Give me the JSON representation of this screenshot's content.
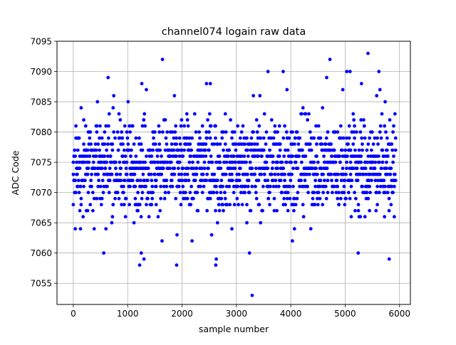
{
  "chart_data": {
    "type": "scatter",
    "title": "channel074 logain raw data",
    "xlabel": "sample number",
    "ylabel": "ADC Code",
    "xlim": [
      -300,
      6200
    ],
    "ylim": [
      7051.5,
      7095
    ],
    "xticks": [
      0,
      1000,
      2000,
      3000,
      4000,
      5000,
      6000
    ],
    "yticks": [
      7055,
      7060,
      7065,
      7070,
      7075,
      7080,
      7085,
      7090,
      7095
    ],
    "x_range": [
      0,
      5930
    ],
    "y_range": [
      7053,
      7093
    ],
    "grid": true,
    "marker_color": "#0000ff",
    "note_dense_band": [
      7066,
      7082
    ],
    "outliers": [
      {
        "x": 640,
        "y": 7089
      },
      {
        "x": 1640,
        "y": 7092
      },
      {
        "x": 3290,
        "y": 7053
      },
      {
        "x": 3240,
        "y": 7060
      },
      {
        "x": 3580,
        "y": 7090
      },
      {
        "x": 3860,
        "y": 7090
      },
      {
        "x": 4720,
        "y": 7092
      },
      {
        "x": 5030,
        "y": 7090
      },
      {
        "x": 5420,
        "y": 7093
      },
      {
        "x": 5620,
        "y": 7090
      },
      {
        "x": 5810,
        "y": 7059
      },
      {
        "x": 560,
        "y": 7060
      },
      {
        "x": 1220,
        "y": 7058
      },
      {
        "x": 1900,
        "y": 7058
      },
      {
        "x": 2620,
        "y": 7058
      },
      {
        "x": 2630,
        "y": 7059
      },
      {
        "x": 5240,
        "y": 7060
      },
      {
        "x": 1300,
        "y": 7059
      },
      {
        "x": 1250,
        "y": 7060
      },
      {
        "x": 1260,
        "y": 7088
      },
      {
        "x": 2450,
        "y": 7088
      },
      {
        "x": 2520,
        "y": 7088
      },
      {
        "x": 3930,
        "y": 7087
      },
      {
        "x": 4030,
        "y": 7062
      },
      {
        "x": 4660,
        "y": 7089
      },
      {
        "x": 5090,
        "y": 7090
      },
      {
        "x": 5300,
        "y": 7088
      }
    ]
  }
}
